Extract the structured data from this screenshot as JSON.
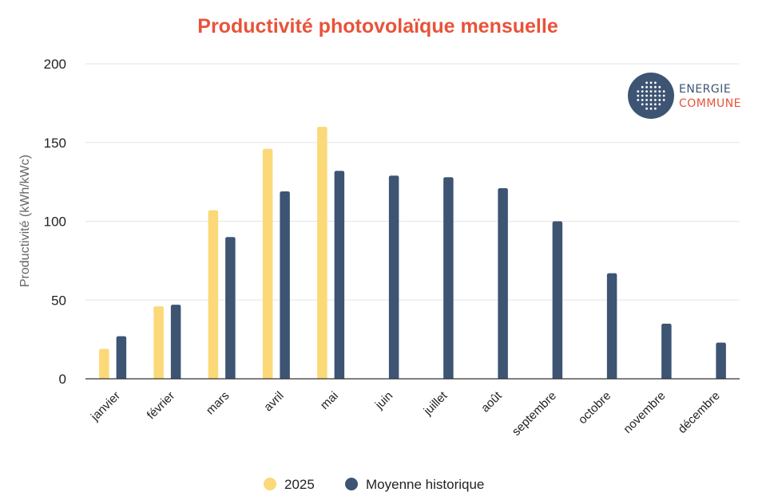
{
  "chart_data": {
    "type": "bar",
    "title": "Productivité photovolaïque mensuelle",
    "ylabel": "Productivité (kWh/kWc)",
    "xlabel": "",
    "ylim": [
      0,
      200
    ],
    "yticks": [
      0,
      50,
      100,
      150,
      200
    ],
    "grid": true,
    "legend_position": "bottom",
    "categories": [
      "janvier",
      "février",
      "mars",
      "avril",
      "mai",
      "juin",
      "juillet",
      "août",
      "septembre",
      "octobre",
      "novembre",
      "décembre"
    ],
    "series": [
      {
        "name": "2025",
        "color": "#fbd978",
        "values": [
          19,
          46,
          107,
          146,
          160,
          null,
          null,
          null,
          null,
          null,
          null,
          null
        ]
      },
      {
        "name": "Moyenne historique",
        "color": "#3d5473",
        "values": [
          27,
          47,
          90,
          119,
          132,
          129,
          128,
          121,
          100,
          67,
          35,
          23
        ]
      }
    ]
  },
  "logo": {
    "line1": "ENERGIE",
    "line2": "COMMUNE",
    "circle_color": "#3d5473",
    "line1_color": "#3d5473",
    "line2_color": "#e8533a"
  },
  "colors": {
    "title": "#e8533a",
    "grid": "#e6e6e6",
    "axis": "#333333"
  }
}
